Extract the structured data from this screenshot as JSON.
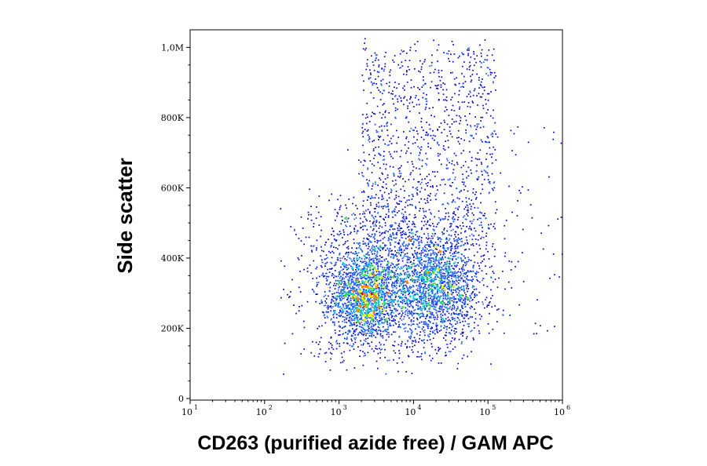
{
  "chart_data": {
    "type": "scatter",
    "subtype": "flow-cytometry density dot plot",
    "xlabel": "CD263 (purified azide free) / GAM APC",
    "ylabel": "Side scatter",
    "x_scale": "log",
    "xlim": [
      10,
      1000000
    ],
    "ylim": [
      0,
      1050000
    ],
    "x_ticks": [
      {
        "value": 10,
        "base": "10",
        "exp": "1"
      },
      {
        "value": 100,
        "base": "10",
        "exp": "2"
      },
      {
        "value": 1000,
        "base": "10",
        "exp": "3"
      },
      {
        "value": 10000,
        "base": "10",
        "exp": "4"
      },
      {
        "value": 100000,
        "base": "10",
        "exp": "5"
      },
      {
        "value": 1000000,
        "base": "10",
        "exp": "6"
      }
    ],
    "y_ticks": [
      {
        "value": 0,
        "label": "0"
      },
      {
        "value": 200000,
        "label": "200K"
      },
      {
        "value": 400000,
        "label": "400K"
      },
      {
        "value": 600000,
        "label": "600K"
      },
      {
        "value": 800000,
        "label": "800K"
      },
      {
        "value": 1000000,
        "label": "1,0M"
      }
    ],
    "density_colors": [
      "#0000c8",
      "#2060ff",
      "#00c8c8",
      "#40e040",
      "#f0f000",
      "#ff8000",
      "#e00000"
    ],
    "clusters": [
      {
        "x_center": 2200,
        "y_center": 290000,
        "relative_density": "highest"
      },
      {
        "x_center": 20000,
        "y_center": 320000,
        "relative_density": "high"
      }
    ],
    "point_cloud": {
      "x_range": [
        150,
        1000000
      ],
      "y_range": [
        70000,
        1030000
      ]
    }
  }
}
